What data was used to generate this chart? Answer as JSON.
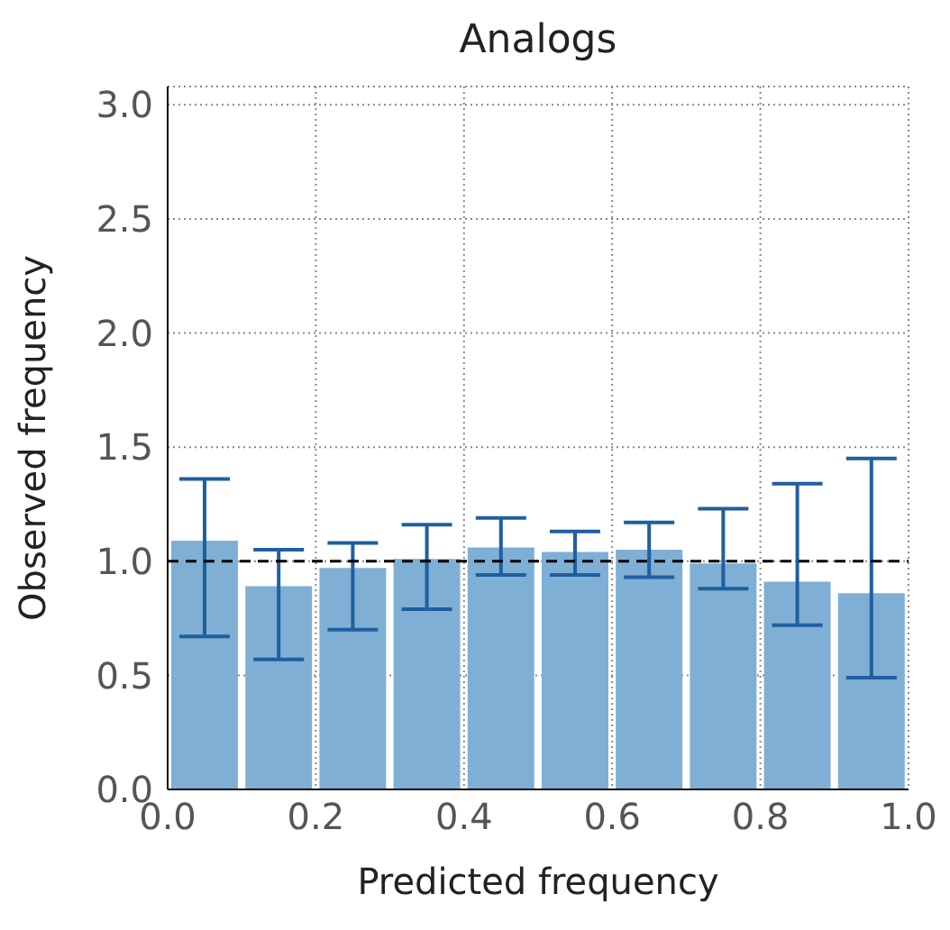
{
  "chart_data": {
    "type": "histogram",
    "title": "Analogs",
    "xlabel": "Predicted frequency",
    "ylabel": "Observed frequency",
    "bins": [
      0,
      0.1,
      0.2,
      0.3,
      0.4,
      0.5,
      0.6,
      0.7,
      0.8,
      0.9,
      1.0
    ],
    "values": [
      1.09,
      0.89,
      0.97,
      1.01,
      1.06,
      1.04,
      1.05,
      0.99,
      0.91,
      0.86
    ],
    "errors": [
      [
        0.67,
        1.36
      ],
      [
        0.57,
        1.05
      ],
      [
        0.7,
        1.08
      ],
      [
        0.79,
        1.16
      ],
      [
        0.94,
        1.19
      ],
      [
        0.94,
        1.13
      ],
      [
        0.93,
        1.17
      ],
      [
        0.88,
        1.23
      ],
      [
        0.72,
        1.34
      ],
      [
        0.49,
        1.45
      ]
    ],
    "color": "#7fafd4",
    "xlim": [
      0,
      1
    ],
    "ylim": [
      0,
      3.08
    ],
    "xticks": [
      {
        "value": 0,
        "label": "0.0"
      },
      {
        "value": 0.2,
        "label": "0.2"
      },
      {
        "value": 0.4,
        "label": "0.4"
      },
      {
        "value": 0.6,
        "label": "0.6"
      },
      {
        "value": 0.8,
        "label": "0.8"
      },
      {
        "value": 1,
        "label": "1.0"
      }
    ],
    "yticks": [
      {
        "value": 0,
        "label": "0.0"
      },
      {
        "value": 0.5,
        "label": "0.5"
      },
      {
        "value": 1,
        "label": "1.0"
      },
      {
        "value": 1.5,
        "label": "1.5"
      },
      {
        "value": 2,
        "label": "2.0"
      },
      {
        "value": 2.5,
        "label": "2.5"
      },
      {
        "value": 3,
        "label": "3.0"
      }
    ],
    "ref_lines": [
      {
        "axis": "y",
        "value": 1,
        "color": "#000000",
        "line_style": "dashed"
      }
    ],
    "grid": true
  }
}
